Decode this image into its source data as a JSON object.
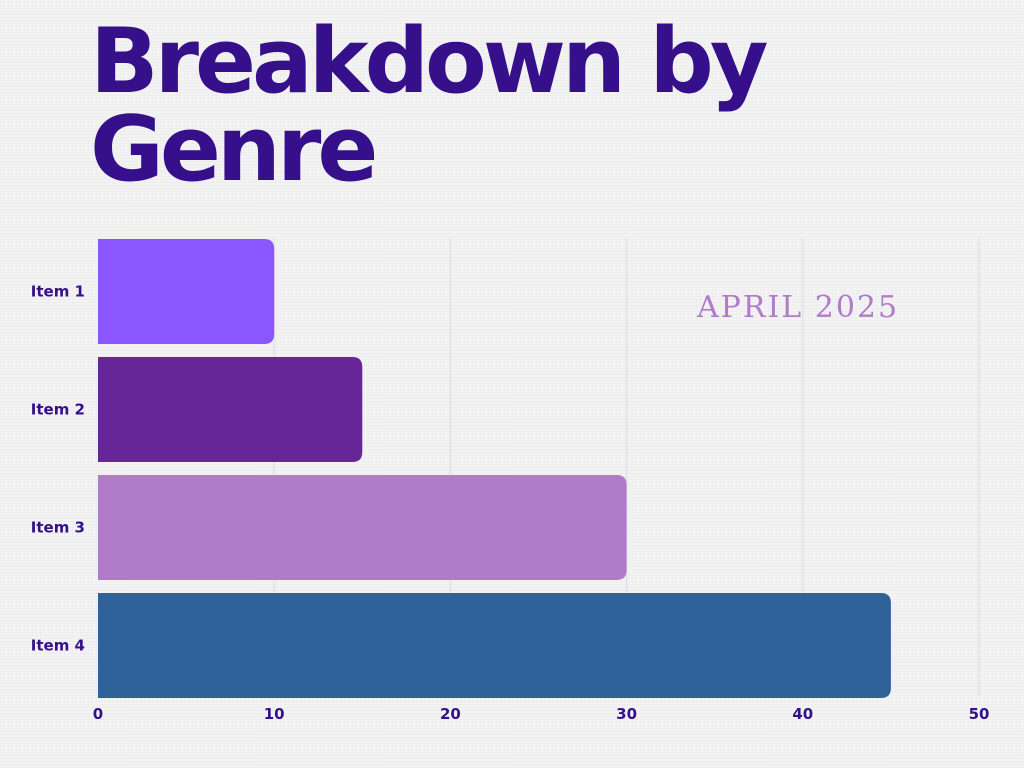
{
  "colors": {
    "title": "#36108a",
    "subtitle": "#b07cca",
    "tick_label": "#36108a",
    "gridline": "#d9dbe6",
    "bars": [
      "#8b55ff",
      "#672697",
      "#b07cca",
      "#2f6299"
    ]
  },
  "chart_data": {
    "type": "bar",
    "orientation": "horizontal",
    "title": "Breakdown by Genre",
    "subtitle": "APRIL 2025",
    "categories": [
      "Item 1",
      "Item 2",
      "Item 3",
      "Item 4"
    ],
    "values": [
      10,
      15,
      30,
      45
    ],
    "xlim": [
      0,
      50
    ],
    "xticks": [
      0,
      10,
      20,
      30,
      40,
      50
    ],
    "grid": "vertical",
    "legend": "none"
  }
}
